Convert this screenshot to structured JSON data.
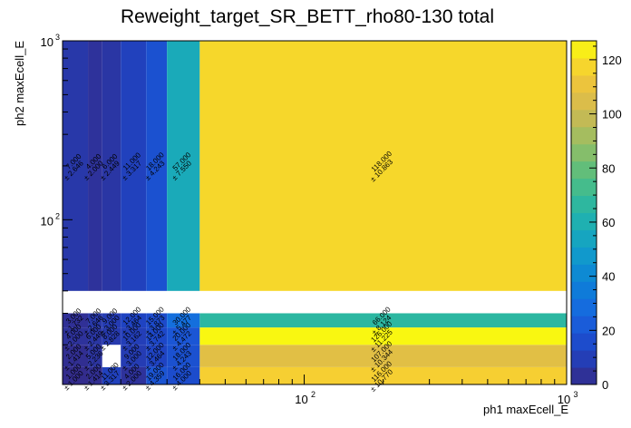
{
  "chart_data": {
    "type": "heatmap",
    "title": "Reweight_target_SR_BETT_rho80-130 total",
    "xlabel": "ph1 maxEcell_E",
    "ylabel": "ph2 maxEcell_E",
    "x_scale": "log",
    "y_scale": "log",
    "xlim": [
      12,
      1000
    ],
    "ylim": [
      12,
      1000
    ],
    "x_tick_labels": [
      {
        "v": 100,
        "b": "10",
        "e": "2"
      },
      {
        "v": 1000,
        "b": "10",
        "e": "3"
      }
    ],
    "y_tick_labels": [
      {
        "v": 100,
        "b": "10",
        "e": "2"
      },
      {
        "v": 1000,
        "b": "10",
        "e": "3"
      }
    ],
    "x_edges": [
      12,
      15,
      17,
      20,
      25,
      30,
      40,
      1000
    ],
    "y_edges": [
      12,
      15,
      20,
      25,
      30,
      35,
      40,
      1000
    ],
    "z_range": [
      0,
      127
    ],
    "colorbar_ticks": [
      0,
      20,
      40,
      60,
      80,
      100,
      120
    ],
    "cells": [
      {
        "ix": 0,
        "iy": 0,
        "value": 1,
        "text": "1.000",
        "err": "± 1.000"
      },
      {
        "ix": 1,
        "iy": 0,
        "value": 2,
        "text": "2.000",
        "err": "± 1.414"
      },
      {
        "ix": 2,
        "iy": 0,
        "value": 11,
        "text": "11.000",
        "err": "± 3.317"
      },
      {
        "ix": 3,
        "iy": 0,
        "value": 4,
        "text": "4.000",
        "err": "± 2.000"
      },
      {
        "ix": 4,
        "iy": 0,
        "value": 19,
        "text": "19.000",
        "err": "± 4.359"
      },
      {
        "ix": 5,
        "iy": 0,
        "value": 16,
        "text": "16.000",
        "err": "± 4.000"
      },
      {
        "ix": 6,
        "iy": 0,
        "value": 116,
        "text": "116.000",
        "err": "± 10.770"
      },
      {
        "ix": 0,
        "iy": 1,
        "value": 2,
        "text": "2.000",
        "err": "± 1.414"
      },
      {
        "ix": 1,
        "iy": 1,
        "value": 5,
        "text": "5.000",
        "err": "± 2.236"
      },
      {
        "ix": 2,
        "iy": 1,
        "value": 0,
        "text": "",
        "err": ""
      },
      {
        "ix": 3,
        "iy": 1,
        "value": 9,
        "text": "9.000",
        "err": "± 3.000"
      },
      {
        "ix": 4,
        "iy": 1,
        "value": 12,
        "text": "12.000",
        "err": "± 3.464"
      },
      {
        "ix": 5,
        "iy": 1,
        "value": 18,
        "text": "18.000",
        "err": "± 4.243"
      },
      {
        "ix": 6,
        "iy": 1,
        "value": 107,
        "text": "107.000",
        "err": "± 10.344"
      },
      {
        "ix": 0,
        "iy": 2,
        "value": 4,
        "text": "4.000",
        "err": "± 2.000"
      },
      {
        "ix": 1,
        "iy": 2,
        "value": 6,
        "text": "6.000",
        "err": "± 2.449"
      },
      {
        "ix": 2,
        "iy": 2,
        "value": 8,
        "text": "8.000",
        "err": "± 2.828"
      },
      {
        "ix": 3,
        "iy": 2,
        "value": 10,
        "text": "10.000",
        "err": "± 3.162"
      },
      {
        "ix": 4,
        "iy": 2,
        "value": 14,
        "text": "14.000",
        "err": "± 3.742"
      },
      {
        "ix": 5,
        "iy": 2,
        "value": 20,
        "text": "20.000",
        "err": "± 4.472"
      },
      {
        "ix": 6,
        "iy": 2,
        "value": 126,
        "text": "126.000",
        "err": "± 11.225"
      },
      {
        "ix": 0,
        "iy": 3,
        "value": 3,
        "text": "3.000",
        "err": "± 1.732"
      },
      {
        "ix": 1,
        "iy": 3,
        "value": 7,
        "text": "7.000",
        "err": "± 2.646"
      },
      {
        "ix": 2,
        "iy": 3,
        "value": 9,
        "text": "9.000",
        "err": "± 3.000"
      },
      {
        "ix": 3,
        "iy": 3,
        "value": 12,
        "text": "12.000",
        "err": "± 3.464"
      },
      {
        "ix": 4,
        "iy": 3,
        "value": 15,
        "text": "15.000",
        "err": "± 3.873"
      },
      {
        "ix": 5,
        "iy": 3,
        "value": 30,
        "text": "30.000",
        "err": "± 5.477"
      },
      {
        "ix": 6,
        "iy": 3,
        "value": 66,
        "text": "66.000",
        "err": "± 8.124"
      },
      {
        "ix": 0,
        "iy": 6,
        "value": 7,
        "text": "7.000",
        "err": "± 2.646"
      },
      {
        "ix": 1,
        "iy": 6,
        "value": 4,
        "text": "4.000",
        "err": "± 2.000"
      },
      {
        "ix": 2,
        "iy": 6,
        "value": 6,
        "text": "6.000",
        "err": "± 2.449"
      },
      {
        "ix": 3,
        "iy": 6,
        "value": 11,
        "text": "11.000",
        "err": "± 3.317"
      },
      {
        "ix": 4,
        "iy": 6,
        "value": 18,
        "text": "18.000",
        "err": "± 4.243"
      },
      {
        "ix": 5,
        "iy": 6,
        "value": 57,
        "text": "57.000",
        "err": "± 7.550"
      },
      {
        "ix": 6,
        "iy": 6,
        "value": 118,
        "text": "118.000",
        "err": "± 10.863"
      }
    ]
  }
}
